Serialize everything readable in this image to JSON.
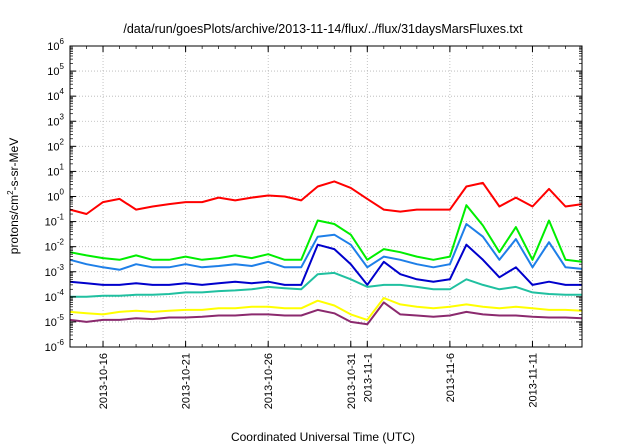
{
  "chart_data": {
    "type": "line",
    "title": "/data/run/goesPlots/archive/2013-11-14/flux/../flux/31daysMarsFluxes.txt",
    "xlabel": "Coordinated Universal Time (UTC)",
    "ylabel": "protons/cm2-s-sr-MeV",
    "ylabel_parts": {
      "pre": "protons/cm",
      "sup": "2",
      "post": "-s-sr-MeV"
    },
    "x_range": [
      "2013-10-14",
      "2013-11-14"
    ],
    "ylim": [
      1e-06,
      1000000.0
    ],
    "y_scale": "log",
    "grid": true,
    "y_ticks": [
      {
        "base": "10",
        "exp": "-6"
      },
      {
        "base": "10",
        "exp": "-5"
      },
      {
        "base": "10",
        "exp": "-4"
      },
      {
        "base": "10",
        "exp": "-3"
      },
      {
        "base": "10",
        "exp": "-2"
      },
      {
        "base": "10",
        "exp": "-1"
      },
      {
        "base": "10",
        "exp": "0"
      },
      {
        "base": "10",
        "exp": "1"
      },
      {
        "base": "10",
        "exp": "2"
      },
      {
        "base": "10",
        "exp": "3"
      },
      {
        "base": "10",
        "exp": "4"
      },
      {
        "base": "10",
        "exp": "5"
      },
      {
        "base": "10",
        "exp": "6"
      }
    ],
    "x_ticks": [
      {
        "date": "2013-10-16",
        "label": "2013-10-16"
      },
      {
        "date": "2013-10-21",
        "label": "2013-10-21"
      },
      {
        "date": "2013-10-26",
        "label": "2013-10-26"
      },
      {
        "date": "2013-10-31",
        "label": "2013-10-31"
      },
      {
        "date": "2013-11-01",
        "label": "2013-11-1"
      },
      {
        "date": "2013-11-06",
        "label": "2013-11-6"
      },
      {
        "date": "2013-11-11",
        "label": "2013-11-11"
      }
    ],
    "series": [
      {
        "color": "#ff0000",
        "x": [
          "2013-10-14",
          "2013-10-15",
          "2013-10-16",
          "2013-10-17",
          "2013-10-18",
          "2013-10-19",
          "2013-10-20",
          "2013-10-21",
          "2013-10-22",
          "2013-10-23",
          "2013-10-24",
          "2013-10-25",
          "2013-10-26",
          "2013-10-27",
          "2013-10-28",
          "2013-10-29",
          "2013-10-30",
          "2013-10-31",
          "2013-11-01",
          "2013-11-02",
          "2013-11-03",
          "2013-11-04",
          "2013-11-05",
          "2013-11-06",
          "2013-11-07",
          "2013-11-08",
          "2013-11-09",
          "2013-11-10",
          "2013-11-11",
          "2013-11-12",
          "2013-11-13",
          "2013-11-14"
        ],
        "values": [
          0.3,
          0.2,
          0.6,
          0.8,
          0.3,
          0.4,
          0.5,
          0.6,
          0.6,
          0.9,
          0.7,
          0.9,
          1.1,
          1.0,
          0.7,
          2.5,
          4.0,
          2.2,
          0.8,
          0.3,
          0.25,
          0.3,
          0.3,
          0.3,
          2.5,
          3.5,
          0.4,
          0.9,
          0.4,
          2.0,
          0.4,
          0.5
        ]
      },
      {
        "color": "#00ee00",
        "x": [
          "2013-10-14",
          "2013-10-15",
          "2013-10-16",
          "2013-10-17",
          "2013-10-18",
          "2013-10-19",
          "2013-10-20",
          "2013-10-21",
          "2013-10-22",
          "2013-10-23",
          "2013-10-24",
          "2013-10-25",
          "2013-10-26",
          "2013-10-27",
          "2013-10-28",
          "2013-10-29",
          "2013-10-30",
          "2013-10-31",
          "2013-11-01",
          "2013-11-02",
          "2013-11-03",
          "2013-11-04",
          "2013-11-05",
          "2013-11-06",
          "2013-11-07",
          "2013-11-08",
          "2013-11-09",
          "2013-11-10",
          "2013-11-11",
          "2013-11-12",
          "2013-11-13",
          "2013-11-14"
        ],
        "values": [
          0.006,
          0.0045,
          0.0035,
          0.003,
          0.0045,
          0.003,
          0.003,
          0.004,
          0.003,
          0.0035,
          0.0045,
          0.0035,
          0.005,
          0.003,
          0.003,
          0.11,
          0.08,
          0.03,
          0.003,
          0.008,
          0.006,
          0.004,
          0.003,
          0.004,
          0.45,
          0.07,
          0.006,
          0.06,
          0.003,
          0.11,
          0.003,
          0.0025
        ]
      },
      {
        "color": "#1e7fe8",
        "x": [
          "2013-10-14",
          "2013-10-15",
          "2013-10-16",
          "2013-10-17",
          "2013-10-18",
          "2013-10-19",
          "2013-10-20",
          "2013-10-21",
          "2013-10-22",
          "2013-10-23",
          "2013-10-24",
          "2013-10-25",
          "2013-10-26",
          "2013-10-27",
          "2013-10-28",
          "2013-10-29",
          "2013-10-30",
          "2013-10-31",
          "2013-11-01",
          "2013-11-02",
          "2013-11-03",
          "2013-11-04",
          "2013-11-05",
          "2013-11-06",
          "2013-11-07",
          "2013-11-08",
          "2013-11-09",
          "2013-11-10",
          "2013-11-11",
          "2013-11-12",
          "2013-11-13",
          "2013-11-14"
        ],
        "values": [
          0.003,
          0.002,
          0.0015,
          0.0012,
          0.002,
          0.0015,
          0.0015,
          0.002,
          0.0015,
          0.0017,
          0.002,
          0.0017,
          0.0025,
          0.0015,
          0.0015,
          0.025,
          0.03,
          0.012,
          0.0015,
          0.004,
          0.003,
          0.002,
          0.0015,
          0.002,
          0.08,
          0.025,
          0.003,
          0.02,
          0.0015,
          0.015,
          0.0015,
          0.0013
        ]
      },
      {
        "color": "#0000cc",
        "x": [
          "2013-10-14",
          "2013-10-15",
          "2013-10-16",
          "2013-10-17",
          "2013-10-18",
          "2013-10-19",
          "2013-10-20",
          "2013-10-21",
          "2013-10-22",
          "2013-10-23",
          "2013-10-24",
          "2013-10-25",
          "2013-10-26",
          "2013-10-27",
          "2013-10-28",
          "2013-10-29",
          "2013-10-30",
          "2013-10-31",
          "2013-11-01",
          "2013-11-02",
          "2013-11-03",
          "2013-11-04",
          "2013-11-05",
          "2013-11-06",
          "2013-11-07",
          "2013-11-08",
          "2013-11-09",
          "2013-11-10",
          "2013-11-11",
          "2013-11-12",
          "2013-11-13",
          "2013-11-14"
        ],
        "values": [
          0.0004,
          0.00035,
          0.0003,
          0.0003,
          0.00035,
          0.0003,
          0.0003,
          0.00035,
          0.0003,
          0.00035,
          0.0004,
          0.00035,
          0.0004,
          0.0003,
          0.0003,
          0.012,
          0.008,
          0.002,
          0.0003,
          0.0025,
          0.0008,
          0.0005,
          0.0004,
          0.0005,
          0.012,
          0.003,
          0.0006,
          0.0015,
          0.0003,
          0.0004,
          0.0003,
          0.0003
        ]
      },
      {
        "color": "#20c0a0",
        "x": [
          "2013-10-14",
          "2013-10-15",
          "2013-10-16",
          "2013-10-17",
          "2013-10-18",
          "2013-10-19",
          "2013-10-20",
          "2013-10-21",
          "2013-10-22",
          "2013-10-23",
          "2013-10-24",
          "2013-10-25",
          "2013-10-26",
          "2013-10-27",
          "2013-10-28",
          "2013-10-29",
          "2013-10-30",
          "2013-10-31",
          "2013-11-01",
          "2013-11-02",
          "2013-11-03",
          "2013-11-04",
          "2013-11-05",
          "2013-11-06",
          "2013-11-07",
          "2013-11-08",
          "2013-11-09",
          "2013-11-10",
          "2013-11-11",
          "2013-11-12",
          "2013-11-13",
          "2013-11-14"
        ],
        "values": [
          0.0001,
          0.0001,
          0.00011,
          0.00011,
          0.00012,
          0.00012,
          0.00013,
          0.00015,
          0.00015,
          0.00017,
          0.00018,
          0.0002,
          0.00025,
          0.00022,
          0.0002,
          0.0008,
          0.0009,
          0.0005,
          0.00025,
          0.0003,
          0.0003,
          0.00025,
          0.0002,
          0.0002,
          0.0005,
          0.0003,
          0.0002,
          0.00025,
          0.00015,
          0.00013,
          0.00012,
          0.00012
        ]
      },
      {
        "color": "#ffff00",
        "x": [
          "2013-10-14",
          "2013-10-15",
          "2013-10-16",
          "2013-10-17",
          "2013-10-18",
          "2013-10-19",
          "2013-10-20",
          "2013-10-21",
          "2013-10-22",
          "2013-10-23",
          "2013-10-24",
          "2013-10-25",
          "2013-10-26",
          "2013-10-27",
          "2013-10-28",
          "2013-10-29",
          "2013-10-30",
          "2013-10-31",
          "2013-11-01",
          "2013-11-02",
          "2013-11-03",
          "2013-11-04",
          "2013-11-05",
          "2013-11-06",
          "2013-11-07",
          "2013-11-08",
          "2013-11-09",
          "2013-11-10",
          "2013-11-11",
          "2013-11-12",
          "2013-11-13",
          "2013-11-14"
        ],
        "values": [
          2.5e-05,
          2.2e-05,
          2e-05,
          2.5e-05,
          2.8e-05,
          2.5e-05,
          2.8e-05,
          3e-05,
          3e-05,
          3.5e-05,
          3.5e-05,
          4e-05,
          4e-05,
          3.5e-05,
          3.5e-05,
          7e-05,
          4.5e-05,
          2e-05,
          1.2e-05,
          9e-05,
          5e-05,
          4e-05,
          3.5e-05,
          4e-05,
          5e-05,
          4e-05,
          3.5e-05,
          4e-05,
          3.5e-05,
          3e-05,
          3e-05,
          2.8e-05
        ]
      },
      {
        "color": "#8b2a6e",
        "x": [
          "2013-10-14",
          "2013-10-15",
          "2013-10-16",
          "2013-10-17",
          "2013-10-18",
          "2013-10-19",
          "2013-10-20",
          "2013-10-21",
          "2013-10-22",
          "2013-10-23",
          "2013-10-24",
          "2013-10-25",
          "2013-10-26",
          "2013-10-27",
          "2013-10-28",
          "2013-10-29",
          "2013-10-30",
          "2013-10-31",
          "2013-11-01",
          "2013-11-02",
          "2013-11-03",
          "2013-11-04",
          "2013-11-05",
          "2013-11-06",
          "2013-11-07",
          "2013-11-08",
          "2013-11-09",
          "2013-11-10",
          "2013-11-11",
          "2013-11-12",
          "2013-11-13",
          "2013-11-14"
        ],
        "values": [
          1.2e-05,
          1e-05,
          1.2e-05,
          1.2e-05,
          1.4e-05,
          1.3e-05,
          1.5e-05,
          1.5e-05,
          1.6e-05,
          1.8e-05,
          1.8e-05,
          2e-05,
          2e-05,
          1.8e-05,
          1.8e-05,
          3e-05,
          2.2e-05,
          1e-05,
          8e-06,
          6e-05,
          2e-05,
          1.8e-05,
          1.6e-05,
          1.8e-05,
          2.5e-05,
          2e-05,
          1.8e-05,
          1.8e-05,
          1.6e-05,
          1.5e-05,
          1.5e-05,
          1.4e-05
        ]
      }
    ]
  }
}
